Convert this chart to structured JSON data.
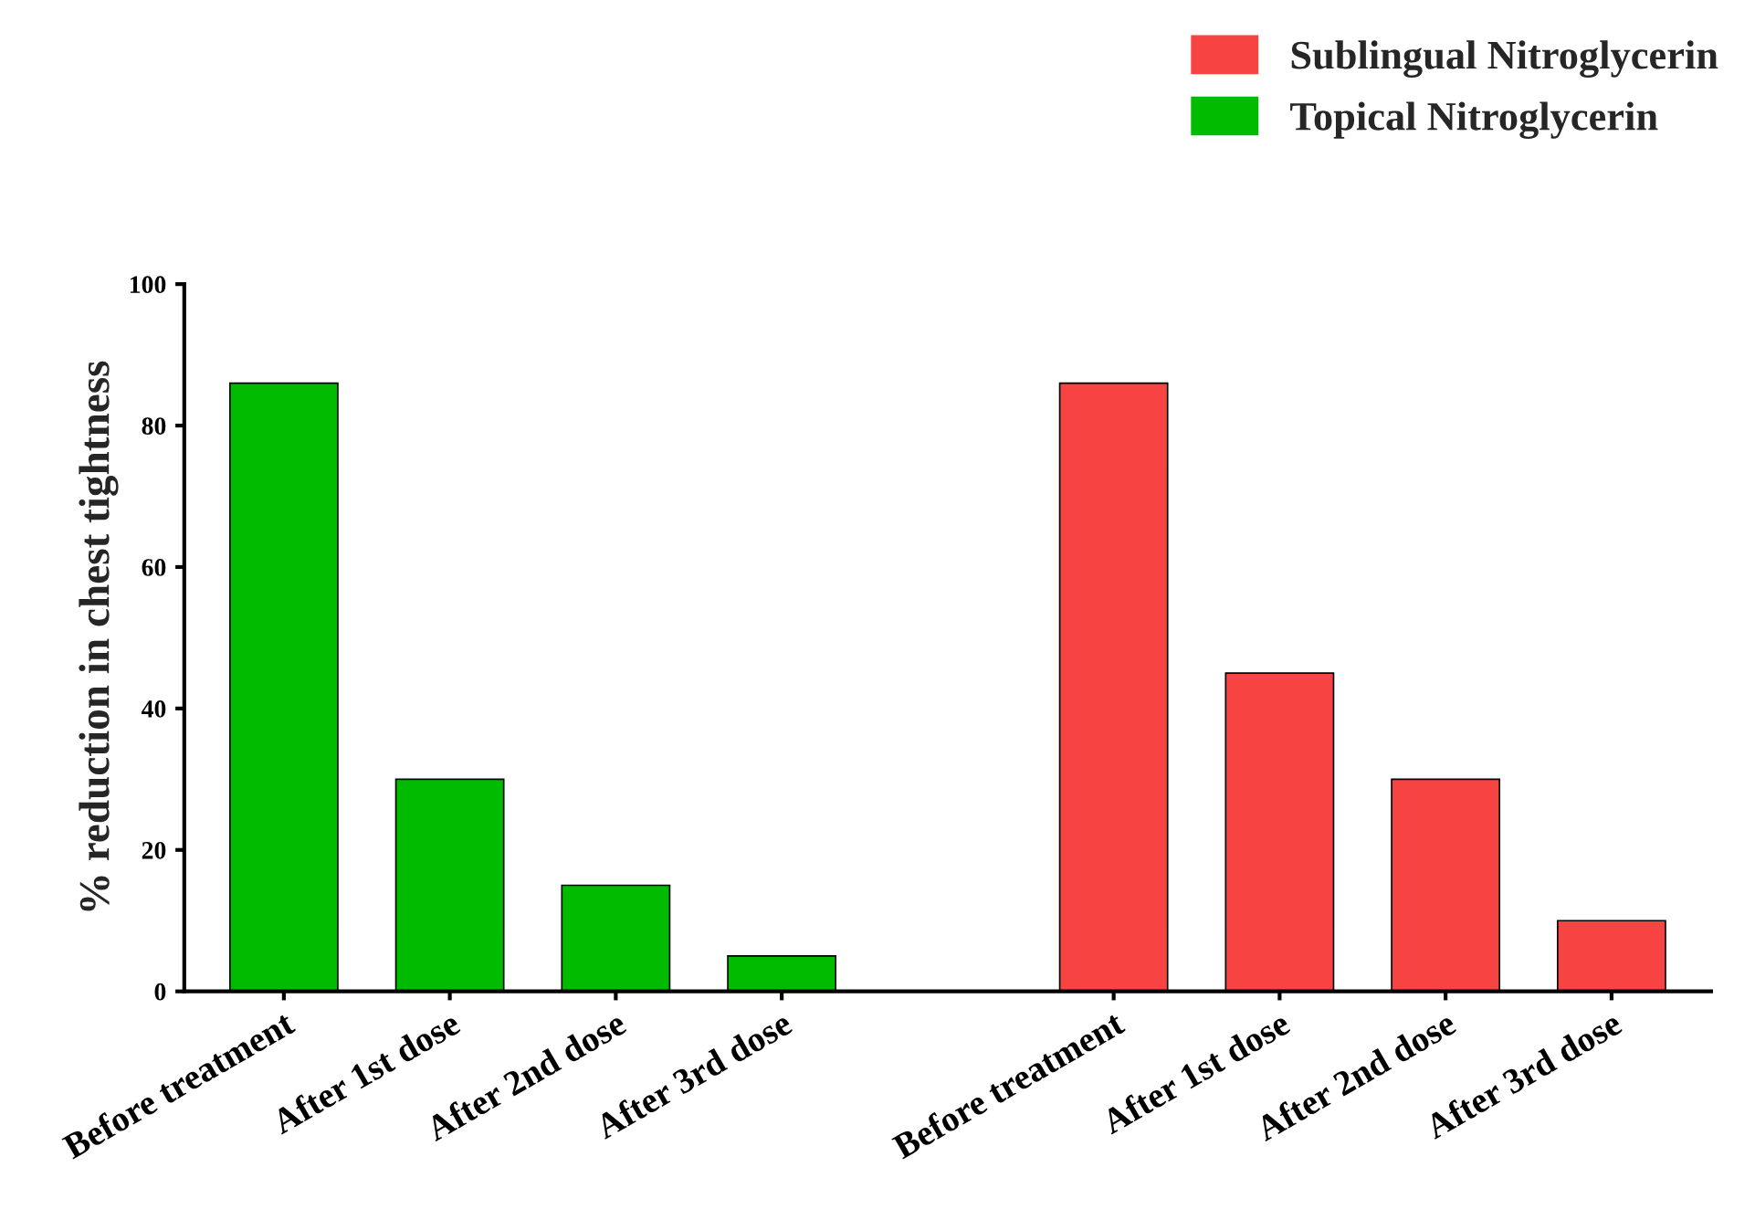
{
  "chart_data": {
    "type": "bar",
    "ylabel": "% reduction in chest tightness",
    "categories": [
      "Before treatment",
      "After 1st dose",
      "After 2nd dose",
      "After 3rd dose",
      null,
      "Before treatment",
      "After 1st dose",
      "After 2nd dose",
      "After 3rd dose"
    ],
    "series": [
      {
        "name": "Sublingual Nitroglycerin",
        "color": "#f84343",
        "values": [
          null,
          null,
          null,
          null,
          null,
          86,
          45,
          30,
          10
        ]
      },
      {
        "name": "Topical Nitroglycerin",
        "color": "#00bb00",
        "values": [
          86,
          30,
          15,
          5,
          null,
          null,
          null,
          null,
          null
        ]
      }
    ],
    "ylim": [
      0,
      100
    ],
    "yticks": [
      0,
      20,
      40,
      60,
      80,
      100
    ],
    "grid": false,
    "legend": "top right"
  }
}
